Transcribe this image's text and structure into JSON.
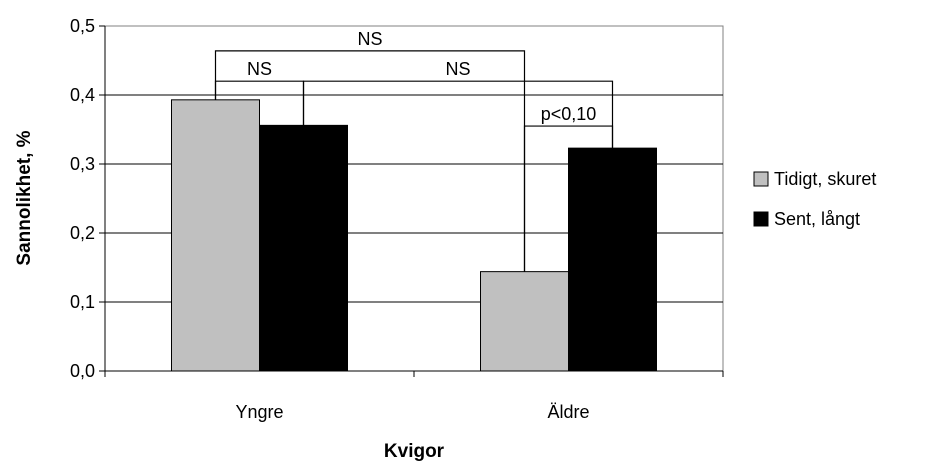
{
  "chart_data": {
    "type": "bar",
    "xlabel": "Kvigor",
    "ylabel": "Sannolikhet, %",
    "categories": [
      "Yngre",
      "Äldre"
    ],
    "series": [
      {
        "name": "Tidigt, skuret",
        "values": [
          0.393,
          0.144
        ],
        "color": "#c0c0c0"
      },
      {
        "name": "Sent, långt",
        "values": [
          0.356,
          0.323
        ],
        "color": "#000000"
      }
    ],
    "ylim": [
      0.0,
      0.5
    ],
    "yticks": [
      "0,0",
      "0,1",
      "0,2",
      "0,3",
      "0,4",
      "0,5"
    ],
    "grid": true,
    "legend_position": "right",
    "annotations": [
      {
        "label": "NS",
        "from": "Yngre / Tidigt, skuret",
        "to": "Äldre / Tidigt, skuret",
        "level": 0.464
      },
      {
        "label": "NS",
        "from": "Yngre / Tidigt, skuret",
        "to": "Yngre / Sent, långt",
        "level": 0.42
      },
      {
        "label": "NS",
        "from": "Yngre / Sent, långt",
        "to": "Äldre / Sent, långt",
        "level": 0.42
      },
      {
        "label": "p<0,10",
        "from": "Äldre / Tidigt, skuret",
        "to": "Äldre / Sent, långt",
        "level": 0.355
      }
    ]
  }
}
